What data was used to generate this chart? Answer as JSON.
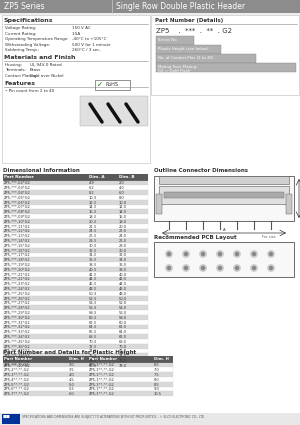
{
  "title_series": "ZP5 Series",
  "title_main": "Single Row Double Plastic Header",
  "header_bg": "#8c8c8c",
  "body_bg": "#ffffff",
  "specs_title": "Specifications",
  "specs": [
    [
      "Voltage Rating:",
      "150 V AC"
    ],
    [
      "Current Rating:",
      "1.5A"
    ],
    [
      "Operating Temperature Range:",
      "-40°C to +105°C"
    ],
    [
      "Withstanding Voltage:",
      "500 V for 1 minute"
    ],
    [
      "Soldering Temp.:",
      "260°C / 3 sec."
    ]
  ],
  "materials_title": "Materials and Finish",
  "materials": [
    [
      "Housing:",
      "UL 94V-0 Rated"
    ],
    [
      "Terminals:",
      "Brass"
    ],
    [
      "Contact Plating:",
      "Gold over Nickel"
    ]
  ],
  "features_title": "Features",
  "features": [
    "• Pin count from 2 to 40"
  ],
  "part_number_title": "Part Number (Details)",
  "part_number_display": "ZP5    .  ***  .  **  . G2",
  "part_number_labels": [
    "Series No.",
    "Plastic Height (see below)",
    "No. of Contact Pins (2 to 40)",
    "Mating Face Plating:\nG2 = Gold Flash"
  ],
  "dim_info_title": "Dimensional Information",
  "dim_headers": [
    "Part Number",
    "Dim. A",
    "Dim. B"
  ],
  "dim_rows": [
    [
      "ZP5-***-02*G2",
      "4.9",
      "2.0"
    ],
    [
      "ZP5-***-03*G2",
      "6.2",
      "4.0"
    ],
    [
      "ZP5-***-04*G2",
      "8.2",
      "6.0"
    ],
    [
      "ZP5-***-05*G2",
      "10.3",
      "8.0"
    ],
    [
      "ZP5-***-06*G2",
      "12.3",
      "10.0"
    ],
    [
      "ZP5-***-07*G2",
      "14.3",
      "12.0"
    ],
    [
      "ZP5-***-08*G2",
      "16.3",
      "14.0"
    ],
    [
      "ZP5-***-09*G2",
      "18.3",
      "16.0"
    ],
    [
      "ZP5-***-10*G2",
      "20.3",
      "18.0"
    ],
    [
      "ZP5-***-11*G2",
      "22.3",
      "20.0"
    ],
    [
      "ZP5-***-12*G2",
      "24.3",
      "22.0"
    ],
    [
      "ZP5-***-13*G2",
      "26.3",
      "24.0"
    ],
    [
      "ZP5-***-14*G2",
      "28.3",
      "26.0"
    ],
    [
      "ZP5-***-15*G2",
      "30.3",
      "28.0"
    ],
    [
      "ZP5-***-16*G2",
      "32.3",
      "30.0"
    ],
    [
      "ZP5-***-17*G2",
      "34.3",
      "32.0"
    ],
    [
      "ZP5-***-18*G2",
      "36.3",
      "34.0"
    ],
    [
      "ZP5-***-19*G2",
      "38.3",
      "36.0"
    ],
    [
      "ZP5-***-20*G2",
      "40.3",
      "38.0"
    ],
    [
      "ZP5-***-21*G2",
      "42.3",
      "40.0"
    ],
    [
      "ZP5-***-22*G2",
      "44.3",
      "42.0"
    ],
    [
      "ZP5-***-23*G2",
      "46.3",
      "44.0"
    ],
    [
      "ZP5-***-24*G2",
      "48.3",
      "46.0"
    ],
    [
      "ZP5-***-25*G2",
      "50.3",
      "48.0"
    ],
    [
      "ZP5-***-26*G2",
      "52.3",
      "50.0"
    ],
    [
      "ZP5-***-27*G2",
      "54.3",
      "52.0"
    ],
    [
      "ZP5-***-28*G2",
      "56.3",
      "54.0"
    ],
    [
      "ZP5-***-29*G2",
      "58.3",
      "56.0"
    ],
    [
      "ZP5-***-30*G2",
      "60.3",
      "58.0"
    ],
    [
      "ZP5-***-31*G2",
      "62.3",
      "60.0"
    ],
    [
      "ZP5-***-32*G2",
      "64.3",
      "62.0"
    ],
    [
      "ZP5-***-33*G2",
      "66.3",
      "64.0"
    ],
    [
      "ZP5-***-34*G2",
      "68.3",
      "66.0"
    ],
    [
      "ZP5-***-35*G2",
      "70.3",
      "68.0"
    ],
    [
      "ZP5-***-36*G2",
      "72.3",
      "70.0"
    ],
    [
      "ZP5-***-37*G2",
      "74.3",
      "72.0"
    ],
    [
      "ZP5-***-38*G2",
      "76.3",
      "74.0"
    ],
    [
      "ZP5-***-39*G2",
      "78.3",
      "76.0"
    ],
    [
      "ZP5-***-40*G2",
      "80.3",
      "78.0"
    ]
  ],
  "outline_title": "Outline Connector Dimensions",
  "pcb_title": "Recommended PCB Layout",
  "bottom_table_title": "Part Number and Details for Plastic Height",
  "bottom_headers": [
    "Part Number",
    "Dim. H",
    "Part Number",
    "Dim. H"
  ],
  "bottom_rows": [
    [
      "ZP5-***-**-G2",
      "3.0",
      "ZP5-1**-**-G2",
      "6.5"
    ],
    [
      "ZP5-2**-**-G2",
      "3.5",
      "ZP5-1**-**-G2",
      "7.0"
    ],
    [
      "ZP5-3**-**-G2",
      "4.0",
      "ZP5-1**-**-G2",
      "7.5"
    ],
    [
      "ZP5-4**-**-G2",
      "4.5",
      "ZP5-1**-**-G2",
      "8.0"
    ],
    [
      "ZP5-5**-**-G2",
      "5.0",
      "ZP5-1**-**-G2",
      "8.5"
    ],
    [
      "ZP5-6**-**-G2",
      "5.5",
      "ZP5-1**-**-G2",
      "9.0"
    ],
    [
      "ZP5-7**-**-G2",
      "6.0",
      "ZP5-1**-**-G2",
      "10.5"
    ]
  ],
  "row_alt_color": "#d9d9d9",
  "row_normal_color": "#ffffff",
  "table_header_color": "#595959",
  "separator_color": "#888888",
  "text_color": "#333333"
}
